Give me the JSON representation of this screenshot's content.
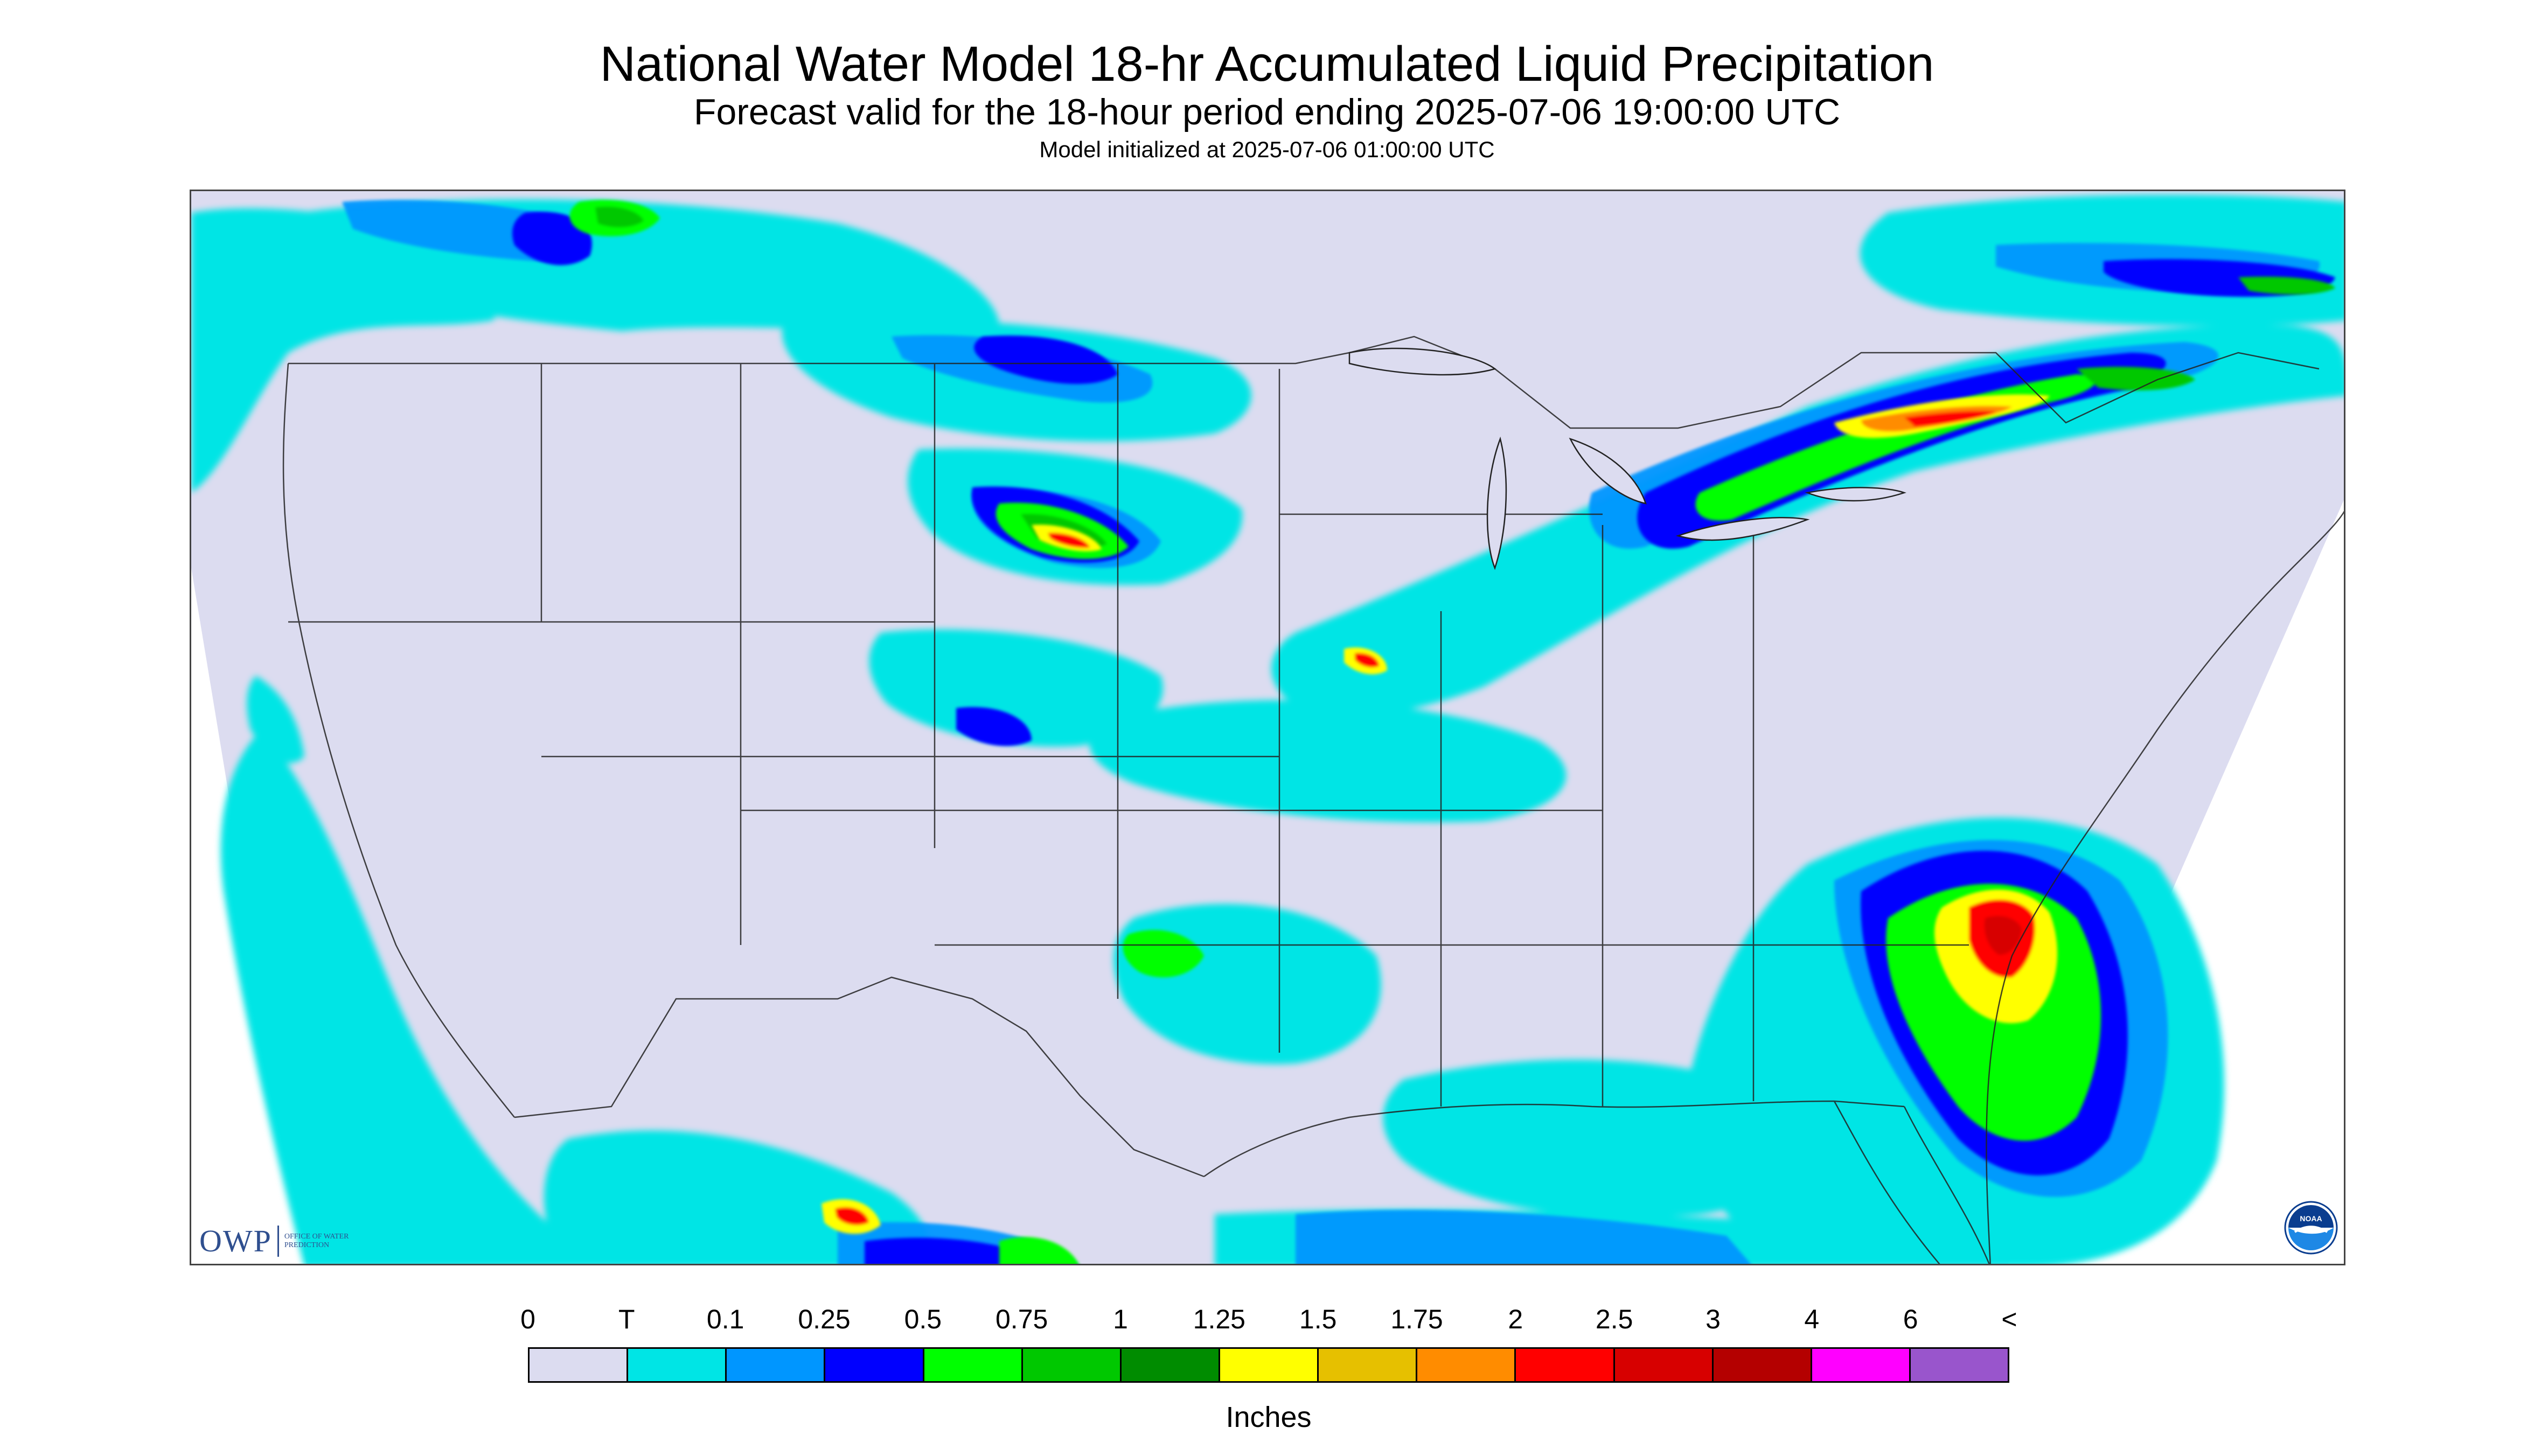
{
  "title": "National Water Model 18-hr Accumulated Liquid Precipitation",
  "subtitle": "Forecast valid for the 18-hour period ending 2025-07-06 19:00:00 UTC",
  "init_line": "Model initialized at 2025-07-06 01:00:00 UTC",
  "logos": {
    "owp_text": "OWP",
    "owp_subtext": "OFFICE OF WATER PREDICTION",
    "noaa_text": "NOAA"
  },
  "legend": {
    "unit": "Inches",
    "labels": [
      "0",
      "T",
      "0.1",
      "0.25",
      "0.5",
      "0.75",
      "1",
      "1.25",
      "1.5",
      "1.75",
      "2",
      "2.5",
      "3",
      "4",
      "6",
      "<"
    ],
    "colors": [
      "#dcdcf0",
      "#00e5e5",
      "#0096ff",
      "#0000ff",
      "#00ff00",
      "#00c800",
      "#008c00",
      "#ffff00",
      "#e6c000",
      "#ff8c00",
      "#ff0000",
      "#d70000",
      "#b40000",
      "#ff00ff",
      "#9955cc"
    ]
  },
  "map": {
    "background": "#dcdcf0",
    "outside": "#ffffff",
    "boundary_color": "#222222"
  }
}
